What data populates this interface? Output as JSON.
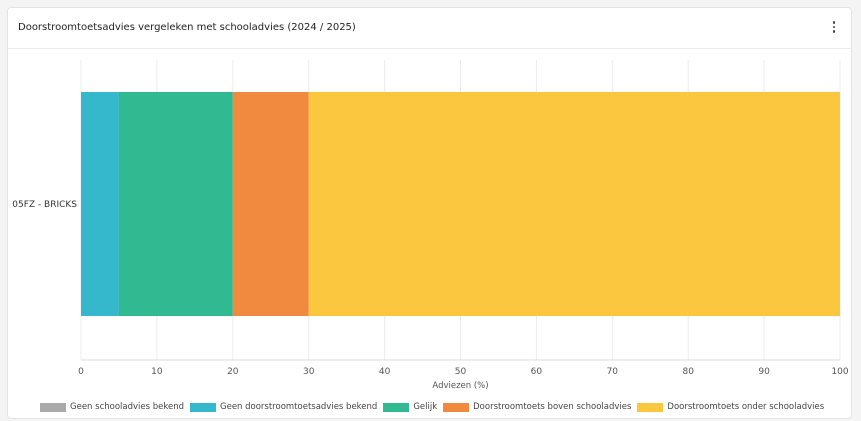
{
  "card": {
    "title": "Doorstroomtoetsadvies vergeleken met schooladvies (2024 / 2025)",
    "menu_icon": "vertical-ellipsis-icon"
  },
  "chart_data": {
    "type": "bar",
    "orientation": "horizontal",
    "stacked": true,
    "categories": [
      "05FZ - BRICKS"
    ],
    "series": [
      {
        "name": "Geen schooladvies bekend",
        "values": [
          0
        ],
        "color": "#aaaaaa"
      },
      {
        "name": "Geen doorstroomtoetsadvies bekend",
        "values": [
          5
        ],
        "color": "#35b8cc"
      },
      {
        "name": "Gelijk",
        "values": [
          15
        ],
        "color": "#31b991"
      },
      {
        "name": "Doorstroomtoets boven schooladvies",
        "values": [
          10
        ],
        "color": "#f18a3e"
      },
      {
        "name": "Doorstroomtoets onder schooladvies",
        "values": [
          70
        ],
        "color": "#fbc73f"
      }
    ],
    "xlabel": "Adviezen (%)",
    "ylabel": "",
    "xlim": [
      0,
      100
    ],
    "xticks": [
      0,
      10,
      20,
      30,
      40,
      50,
      60,
      70,
      80,
      90,
      100
    ],
    "grid": true,
    "legend": "bottom"
  }
}
